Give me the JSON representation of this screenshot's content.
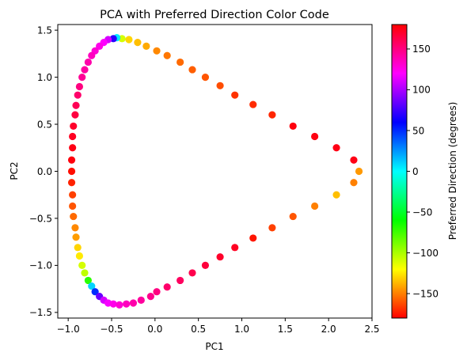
{
  "chart_data": {
    "type": "scatter",
    "title": "PCA with Preferred Direction Color Code",
    "xlabel": "PC1",
    "ylabel": "PC2",
    "xlim": [
      -1.12,
      2.5
    ],
    "ylim": [
      -1.56,
      1.56
    ],
    "xticks": [
      -1.0,
      -0.5,
      0.0,
      0.5,
      1.0,
      1.5,
      2.0,
      2.5
    ],
    "xtick_labels": [
      "−1.0",
      "−0.5",
      "0.0",
      "0.5",
      "1.0",
      "1.5",
      "2.0",
      "2.5"
    ],
    "yticks": [
      -1.5,
      -1.0,
      -0.5,
      0.0,
      0.5,
      1.0,
      1.5
    ],
    "ytick_labels": [
      "−1.5",
      "−1.0",
      "−0.5",
      "0.0",
      "0.5",
      "1.0",
      "1.5"
    ],
    "grid": false,
    "colorbar": {
      "label": "Preferred Direction (degrees)",
      "cmap": "hsv",
      "range": [
        -180,
        180
      ],
      "ticks": [
        -150,
        -100,
        -50,
        0,
        50,
        100,
        150
      ],
      "tick_labels": [
        "−150",
        "−100",
        "−50",
        "0",
        "50",
        "100",
        "150"
      ]
    },
    "points": [
      {
        "x": 2.35,
        "y": 0.0,
        "c": -144
      },
      {
        "x": 2.29,
        "y": 0.12,
        "c": 175
      },
      {
        "x": 2.09,
        "y": 0.25,
        "c": 175
      },
      {
        "x": 1.84,
        "y": 0.37,
        "c": 176
      },
      {
        "x": 1.59,
        "y": 0.48,
        "c": 177
      },
      {
        "x": 1.35,
        "y": 0.6,
        "c": -171
      },
      {
        "x": 1.13,
        "y": 0.71,
        "c": -170
      },
      {
        "x": 0.92,
        "y": 0.81,
        "c": -168
      },
      {
        "x": 0.75,
        "y": 0.91,
        "c": -162
      },
      {
        "x": 0.58,
        "y": 1.0,
        "c": -160
      },
      {
        "x": 0.43,
        "y": 1.08,
        "c": -158
      },
      {
        "x": 0.29,
        "y": 1.16,
        "c": -155
      },
      {
        "x": 0.14,
        "y": 1.23,
        "c": -152
      },
      {
        "x": 0.02,
        "y": 1.28,
        "c": -148
      },
      {
        "x": -0.1,
        "y": 1.33,
        "c": -140
      },
      {
        "x": -0.2,
        "y": 1.37,
        "c": -135
      },
      {
        "x": -0.3,
        "y": 1.4,
        "c": -130
      },
      {
        "x": -0.38,
        "y": 1.41,
        "c": -110
      },
      {
        "x": -0.44,
        "y": 1.42,
        "c": 5
      },
      {
        "x": -0.48,
        "y": 1.41,
        "c": 70
      },
      {
        "x": -0.54,
        "y": 1.4,
        "c": 110
      },
      {
        "x": -0.59,
        "y": 1.37,
        "c": 120
      },
      {
        "x": -0.64,
        "y": 1.33,
        "c": 125
      },
      {
        "x": -0.69,
        "y": 1.28,
        "c": 130
      },
      {
        "x": -0.73,
        "y": 1.23,
        "c": 135
      },
      {
        "x": -0.77,
        "y": 1.16,
        "c": 140
      },
      {
        "x": -0.81,
        "y": 1.08,
        "c": 142
      },
      {
        "x": -0.84,
        "y": 1.0,
        "c": 145
      },
      {
        "x": -0.87,
        "y": 0.9,
        "c": 150
      },
      {
        "x": -0.89,
        "y": 0.81,
        "c": 155
      },
      {
        "x": -0.91,
        "y": 0.7,
        "c": 160
      },
      {
        "x": -0.92,
        "y": 0.6,
        "c": 165
      },
      {
        "x": -0.94,
        "y": 0.48,
        "c": 170
      },
      {
        "x": -0.95,
        "y": 0.37,
        "c": 172
      },
      {
        "x": -0.95,
        "y": 0.25,
        "c": 175
      },
      {
        "x": -0.96,
        "y": 0.12,
        "c": 177
      },
      {
        "x": -0.96,
        "y": 0.0,
        "c": -177
      },
      {
        "x": -0.96,
        "y": -0.12,
        "c": -172
      },
      {
        "x": -0.95,
        "y": -0.25,
        "c": -165
      },
      {
        "x": -0.95,
        "y": -0.37,
        "c": -160
      },
      {
        "x": -0.94,
        "y": -0.48,
        "c": -155
      },
      {
        "x": -0.92,
        "y": -0.6,
        "c": -148
      },
      {
        "x": -0.91,
        "y": -0.7,
        "c": -143
      },
      {
        "x": -0.89,
        "y": -0.81,
        "c": -130
      },
      {
        "x": -0.87,
        "y": -0.9,
        "c": -125
      },
      {
        "x": -0.84,
        "y": -1.0,
        "c": -110
      },
      {
        "x": -0.81,
        "y": -1.08,
        "c": -105
      },
      {
        "x": -0.77,
        "y": -1.16,
        "c": -70
      },
      {
        "x": -0.73,
        "y": -1.22,
        "c": 10
      },
      {
        "x": -0.69,
        "y": -1.28,
        "c": 50
      },
      {
        "x": -0.64,
        "y": -1.33,
        "c": 85
      },
      {
        "x": -0.59,
        "y": -1.37,
        "c": 110
      },
      {
        "x": -0.54,
        "y": -1.4,
        "c": 118
      },
      {
        "x": -0.48,
        "y": -1.41,
        "c": 125
      },
      {
        "x": -0.41,
        "y": -1.42,
        "c": 130
      },
      {
        "x": -0.33,
        "y": -1.41,
        "c": 135
      },
      {
        "x": -0.25,
        "y": -1.4,
        "c": 140
      },
      {
        "x": -0.16,
        "y": -1.37,
        "c": 143
      },
      {
        "x": -0.05,
        "y": -1.33,
        "c": 147
      },
      {
        "x": 0.02,
        "y": -1.28,
        "c": 150
      },
      {
        "x": 0.14,
        "y": -1.23,
        "c": 155
      },
      {
        "x": 0.29,
        "y": -1.16,
        "c": 158
      },
      {
        "x": 0.43,
        "y": -1.08,
        "c": 162
      },
      {
        "x": 0.58,
        "y": -1.0,
        "c": 166
      },
      {
        "x": 0.75,
        "y": -0.91,
        "c": 170
      },
      {
        "x": 0.92,
        "y": -0.81,
        "c": 172
      },
      {
        "x": 1.13,
        "y": -0.71,
        "c": -175
      },
      {
        "x": 1.35,
        "y": -0.6,
        "c": -165
      },
      {
        "x": 1.59,
        "y": -0.48,
        "c": -160
      },
      {
        "x": 1.84,
        "y": -0.37,
        "c": -150
      },
      {
        "x": 2.09,
        "y": -0.25,
        "c": -135
      },
      {
        "x": 2.29,
        "y": -0.12,
        "c": -150
      }
    ]
  }
}
